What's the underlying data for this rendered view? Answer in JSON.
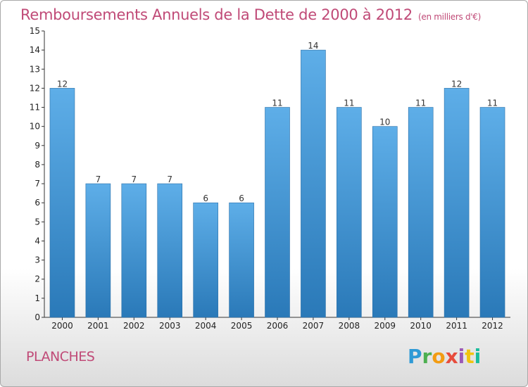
{
  "page": {
    "title": "Remboursements Annuels de la Dette de 2000 à 2012",
    "unit": "(en milliers d'€)",
    "commune": "PLANCHES",
    "logo": {
      "letters": [
        "P",
        "r",
        "o",
        "x",
        "i",
        "t",
        "i"
      ],
      "colors": [
        "#2e9ad6",
        "#4caf50",
        "#f39c12",
        "#e74c3c",
        "#9b59b6",
        "#f1c40f",
        "#1abc9c"
      ]
    }
  },
  "chart_data": {
    "type": "bar",
    "title": "Remboursements Annuels de la Dette de 2000 à 2012",
    "xlabel": "",
    "ylabel": "",
    "categories": [
      "2000",
      "2001",
      "2002",
      "2003",
      "2004",
      "2005",
      "2006",
      "2007",
      "2008",
      "2009",
      "2010",
      "2011",
      "2012"
    ],
    "values": [
      12,
      7,
      7,
      7,
      6,
      6,
      11,
      14,
      11,
      10,
      11,
      12,
      11
    ],
    "value_labels": [
      "12",
      "7",
      "7",
      "7",
      "6",
      "6",
      "11",
      "14",
      "11",
      "10",
      "11",
      "12",
      "11"
    ],
    "yticks": [
      "0",
      "1",
      "2",
      "3",
      "4",
      "5",
      "6",
      "7",
      "8",
      "9",
      "10",
      "11",
      "12",
      "13",
      "14",
      "15"
    ],
    "ylim": [
      0,
      15
    ],
    "grid": false,
    "bar_color_top": "#5eaee8",
    "bar_color_bottom": "#2a79b8",
    "axis_color": "#333333"
  }
}
